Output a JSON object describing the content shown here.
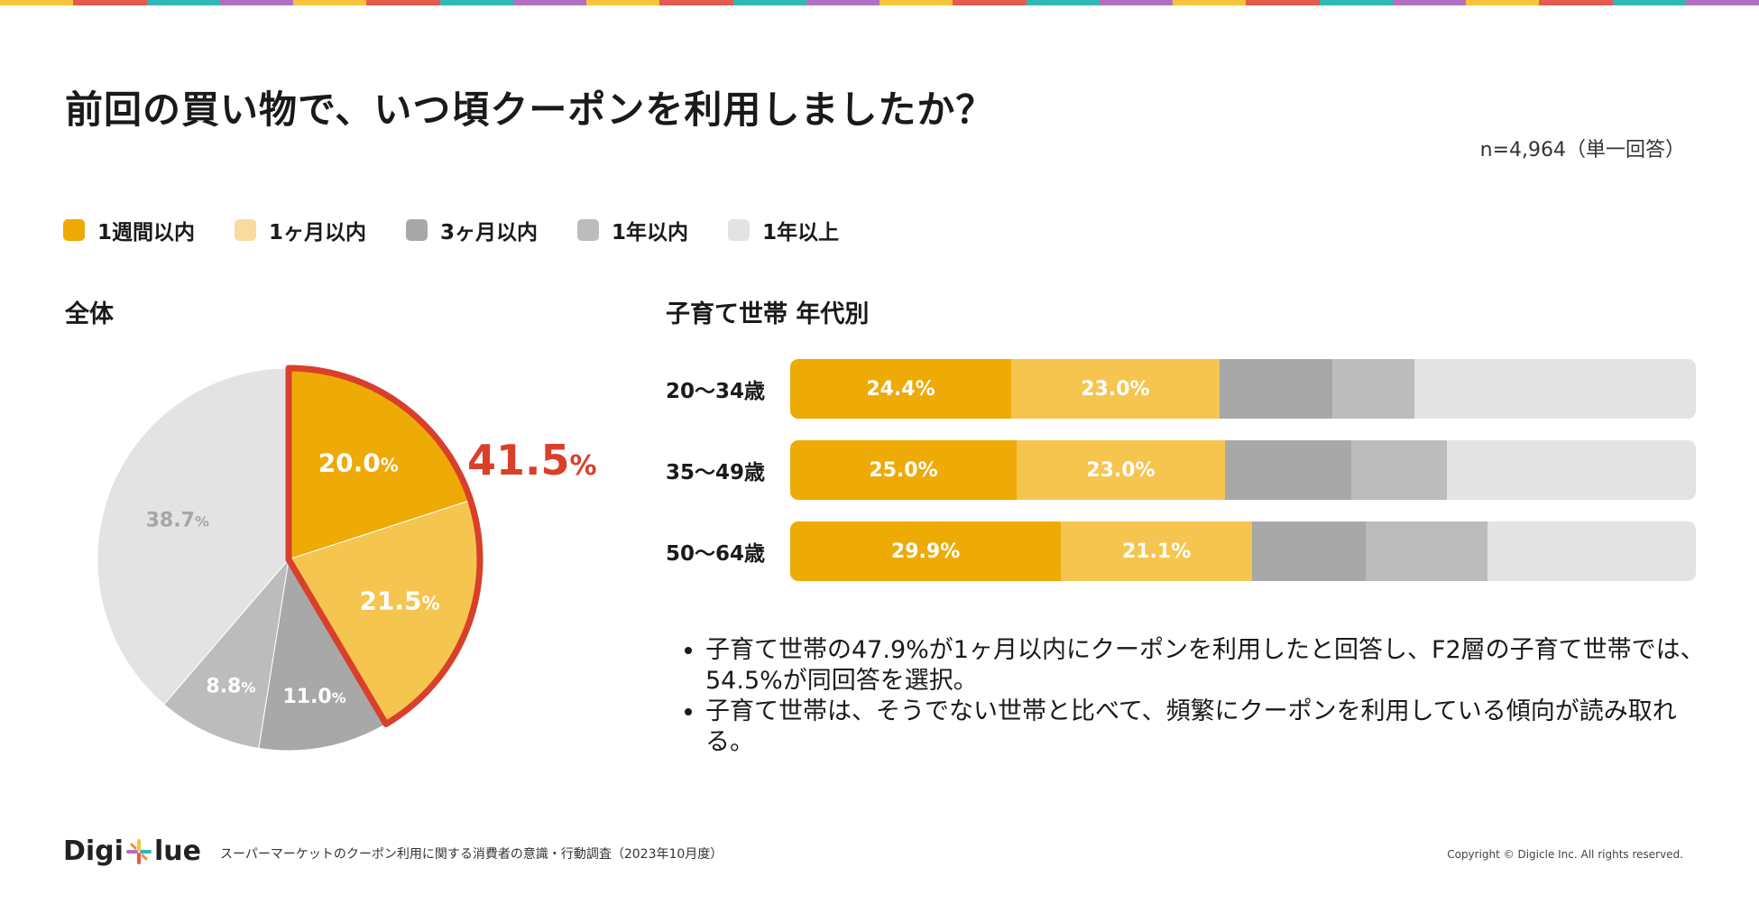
{
  "title": "前回の買い物で、いつ頃クーポンを利用しましたか？",
  "sample_note": "n=4,964（単一回答）",
  "colors": {
    "top_stripe": [
      "#f5c43a",
      "#e45a4e",
      "#2fb8b3",
      "#b26fc0"
    ],
    "week": "#eeaa05",
    "month": "#f5c54f",
    "three_months": "#a8a8a8",
    "year": "#bcbcbc",
    "over_year": "#e3e3e3",
    "highlight": "#d93f2b"
  },
  "legend": [
    {
      "label": "1週間以内",
      "color": "#eeaa05"
    },
    {
      "label": "1ヶ月以内",
      "color": "#f7dc9d"
    },
    {
      "label": "3ヶ月以内",
      "color": "#a8a8a8"
    },
    {
      "label": "1年以内",
      "color": "#bcbcbc"
    },
    {
      "label": "1年以上",
      "color": "#e3e3e3"
    }
  ],
  "pie_title": "全体",
  "bar_title": "子育て世帯 年代別",
  "chart_data": [
    {
      "type": "pie",
      "title": "全体",
      "categories": [
        "1週間以内",
        "1ヶ月以内",
        "3ヶ月以内",
        "1年以内",
        "1年以上"
      ],
      "values": [
        20.0,
        21.5,
        11.0,
        8.8,
        38.7
      ],
      "labels": [
        "20.0",
        "21.5",
        "11.0",
        "8.8",
        "38.7"
      ],
      "unit": "%",
      "highlight_total": "41.5",
      "highlight_unit": "%"
    },
    {
      "type": "bar",
      "stacked": true,
      "orientation": "horizontal",
      "title": "子育て世帯 年代別",
      "categories": [
        "20〜34歳",
        "35〜49歳",
        "50〜64歳"
      ],
      "series": [
        {
          "name": "1週間以内",
          "values": [
            24.4,
            25.0,
            29.9
          ],
          "labels": [
            "24.4%",
            "25.0%",
            "29.9%"
          ]
        },
        {
          "name": "1ヶ月以内",
          "values": [
            23.0,
            23.0,
            21.1
          ],
          "labels": [
            "23.0%",
            "23.0%",
            "21.1%"
          ]
        },
        {
          "name": "3ヶ月以内",
          "values": [
            12.5,
            14.0,
            12.5
          ]
        },
        {
          "name": "1年以内",
          "values": [
            9.0,
            10.5,
            13.5
          ]
        },
        {
          "name": "1年以上",
          "values": [
            31.1,
            27.5,
            23.0
          ]
        }
      ],
      "xlim": [
        0,
        100
      ]
    }
  ],
  "notes": [
    "子育て世帯の47.9%が1ヶ月以内にクーポンを利用したと回答し、F2層の子育て世帯では、54.5%が同回答を選択。",
    "子育て世帯は、そうでない世帯と比べて、頻繁にクーポンを利用している傾向が読み取れる。"
  ],
  "footer": {
    "logo_left": "Digi",
    "logo_right": "lue",
    "source": "スーパーマーケットのクーポン利用に関する消費者の意識・行動調査（2023年10月度）",
    "copyright": "Copyright © Digicle Inc. All rights reserved."
  }
}
